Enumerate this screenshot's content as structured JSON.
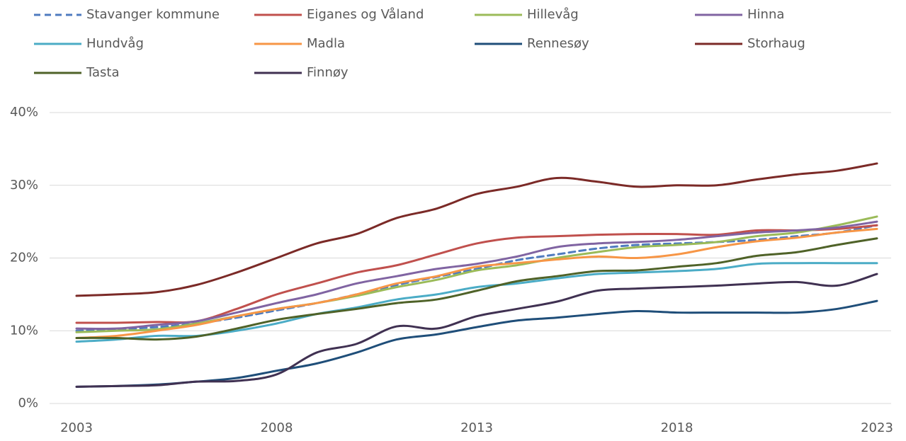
{
  "chart_data": {
    "type": "line",
    "x": [
      2003,
      2004,
      2005,
      2006,
      2007,
      2008,
      2009,
      2010,
      2011,
      2012,
      2013,
      2014,
      2015,
      2016,
      2017,
      2018,
      2019,
      2020,
      2021,
      2022,
      2023
    ],
    "xlim": [
      2003,
      2023
    ],
    "xticks": [
      2003,
      2008,
      2013,
      2018,
      2023
    ],
    "ylim": [
      0,
      40
    ],
    "yticks": [
      {
        "value": 0,
        "label": "0%"
      },
      {
        "value": 10,
        "label": "10%"
      },
      {
        "value": 20,
        "label": "20%"
      },
      {
        "value": 30,
        "label": "30%"
      },
      {
        "value": 40,
        "label": "40%"
      }
    ],
    "grid": true,
    "legend": "top",
    "series": [
      {
        "name": "Stavanger kommune",
        "color": "#4f7bbf",
        "dashed": true,
        "values": [
          10.0,
          10.2,
          10.5,
          11.0,
          11.8,
          12.8,
          13.8,
          15.0,
          16.3,
          17.4,
          18.5,
          19.7,
          20.5,
          21.3,
          21.8,
          22.0,
          22.2,
          22.5,
          23.0,
          23.5,
          24.5
        ]
      },
      {
        "name": "Eiganes og Våland",
        "color": "#c0504d",
        "values": [
          11.1,
          11.1,
          11.2,
          11.3,
          13.0,
          15.0,
          16.5,
          18.0,
          19.0,
          20.5,
          22.0,
          22.8,
          23.0,
          23.2,
          23.3,
          23.3,
          23.2,
          23.8,
          23.8,
          24.0,
          24.5
        ]
      },
      {
        "name": "Hillevåg",
        "color": "#9bbb59",
        "values": [
          9.8,
          10.0,
          10.2,
          11.0,
          12.0,
          13.0,
          13.8,
          14.8,
          16.0,
          17.0,
          18.3,
          19.0,
          20.0,
          20.8,
          21.5,
          21.8,
          22.2,
          23.0,
          23.5,
          24.5,
          25.7
        ]
      },
      {
        "name": "Hinna",
        "color": "#8064a2",
        "values": [
          10.3,
          10.3,
          10.8,
          11.3,
          12.5,
          13.8,
          15.0,
          16.5,
          17.5,
          18.5,
          19.2,
          20.2,
          21.5,
          22.0,
          22.2,
          22.5,
          23.0,
          23.5,
          23.8,
          24.2,
          25.0
        ]
      },
      {
        "name": "Hundvåg",
        "color": "#4bacc6",
        "values": [
          8.5,
          8.8,
          9.3,
          9.3,
          10.0,
          11.0,
          12.3,
          13.2,
          14.3,
          15.0,
          16.0,
          16.5,
          17.2,
          17.8,
          18.0,
          18.2,
          18.5,
          19.2,
          19.3,
          19.3,
          19.3
        ]
      },
      {
        "name": "Madla",
        "color": "#f79646",
        "values": [
          9.0,
          9.3,
          10.0,
          10.8,
          12.0,
          13.0,
          13.8,
          15.0,
          16.5,
          17.5,
          18.8,
          19.3,
          19.8,
          20.2,
          20.0,
          20.5,
          21.5,
          22.3,
          22.8,
          23.5,
          24.0
        ]
      },
      {
        "name": "Rennesøy",
        "color": "#1f4e79",
        "values": [
          2.3,
          2.4,
          2.6,
          3.0,
          3.5,
          4.5,
          5.5,
          7.0,
          8.8,
          9.5,
          10.5,
          11.4,
          11.8,
          12.3,
          12.7,
          12.5,
          12.5,
          12.5,
          12.5,
          13.0,
          14.1
        ]
      },
      {
        "name": "Storhaug",
        "color": "#7b2a27",
        "values": [
          14.8,
          15.0,
          15.3,
          16.3,
          18.0,
          20.0,
          22.0,
          23.3,
          25.5,
          26.8,
          28.8,
          29.8,
          31.0,
          30.5,
          29.8,
          30.0,
          30.0,
          30.8,
          31.5,
          32.0,
          33.0
        ]
      },
      {
        "name": "Tasta",
        "color": "#4f6228",
        "values": [
          9.0,
          9.0,
          8.8,
          9.2,
          10.3,
          11.5,
          12.3,
          13.0,
          13.8,
          14.3,
          15.5,
          16.8,
          17.5,
          18.2,
          18.3,
          18.8,
          19.3,
          20.3,
          20.8,
          21.8,
          22.7
        ]
      },
      {
        "name": "Finnøy",
        "color": "#403152",
        "values": [
          2.3,
          2.4,
          2.5,
          3.0,
          3.1,
          4.0,
          7.0,
          8.2,
          10.6,
          10.3,
          12.0,
          13.0,
          14.0,
          15.5,
          15.8,
          16.0,
          16.2,
          16.5,
          16.7,
          16.2,
          17.8
        ]
      }
    ]
  }
}
